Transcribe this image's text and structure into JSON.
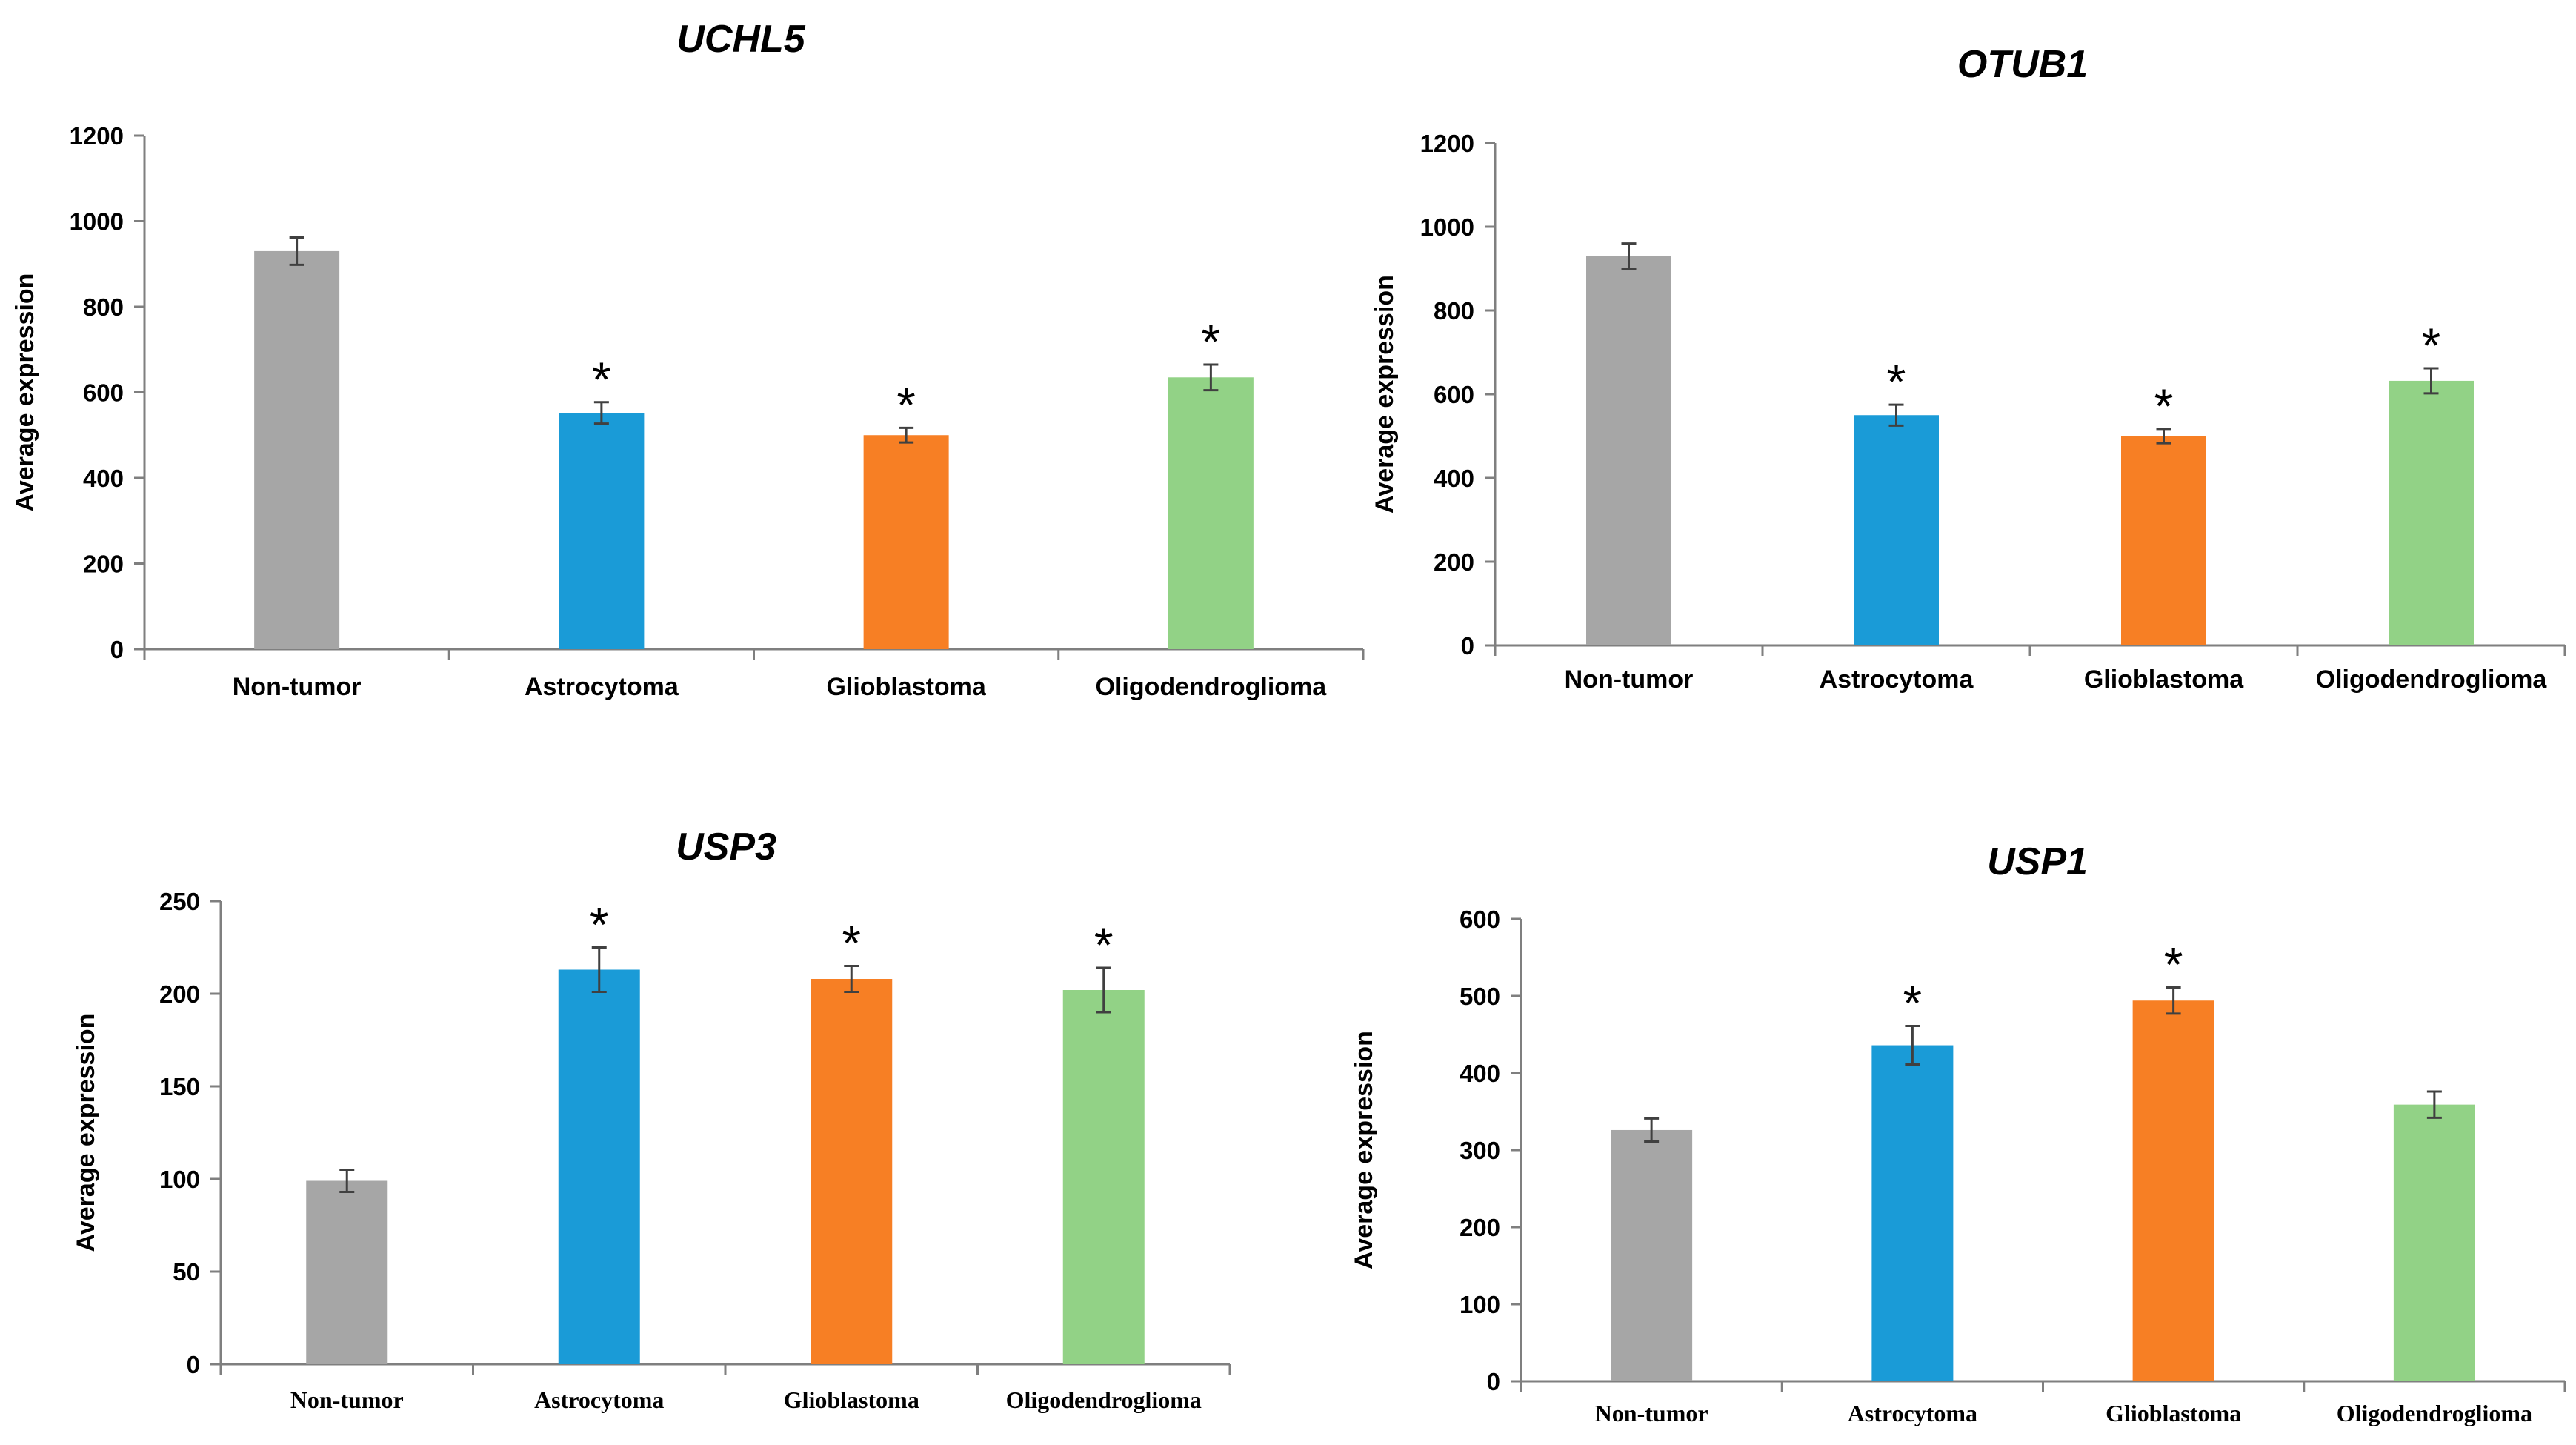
{
  "colors": {
    "Non-tumor": "#a6a6a6",
    "Astrocytoma": "#1a9bd7",
    "Glioblastoma": "#f77f24",
    "Oligodendroglioma": "#92d286"
  },
  "chart_data": [
    {
      "type": "bar",
      "title": "UCHL5",
      "ylabel": "Average expression",
      "xlabel": "",
      "categories": [
        "Non-tumor",
        "Astrocytoma",
        "Glioblastoma",
        "Oligodendroglioma"
      ],
      "values": [
        930,
        552,
        500,
        635
      ],
      "errors": [
        32,
        25,
        17,
        30
      ],
      "significance": [
        "",
        "*",
        "*",
        "*"
      ],
      "ylim": [
        0,
        1200
      ],
      "yticks": [
        0,
        200,
        400,
        600,
        800,
        1000,
        1200
      ],
      "grid": false
    },
    {
      "type": "bar",
      "title": "OTUB1",
      "ylabel": "Average expression",
      "xlabel": "",
      "categories": [
        "Non-tumor",
        "Astrocytoma",
        "Glioblastoma",
        "Oligodendroglioma"
      ],
      "values": [
        930,
        550,
        500,
        632
      ],
      "errors": [
        30,
        25,
        17,
        30
      ],
      "significance": [
        "",
        "*",
        "*",
        "*"
      ],
      "ylim": [
        0,
        1200
      ],
      "yticks": [
        0,
        200,
        400,
        600,
        800,
        1000,
        1200
      ],
      "grid": false
    },
    {
      "type": "bar",
      "title": "USP3",
      "ylabel": "Average expression",
      "xlabel": "",
      "categories": [
        "Non-tumor",
        "Astrocytoma",
        "Glioblastoma",
        "Oligodendroglioma"
      ],
      "values": [
        99,
        213,
        208,
        202
      ],
      "errors": [
        6,
        12,
        7,
        12
      ],
      "significance": [
        "",
        "*",
        "*",
        "*"
      ],
      "ylim": [
        0,
        250
      ],
      "yticks": [
        0,
        50,
        100,
        150,
        200,
        250
      ],
      "grid": false
    },
    {
      "type": "bar",
      "title": "USP1",
      "ylabel": "Average expression",
      "xlabel": "",
      "categories": [
        "Non-tumor",
        "Astrocytoma",
        "Glioblastoma",
        "Oligodendroglioma"
      ],
      "values": [
        326,
        436,
        494,
        359
      ],
      "errors": [
        15,
        25,
        17,
        17
      ],
      "significance": [
        "",
        "*",
        "*",
        ""
      ],
      "ylim": [
        0,
        600
      ],
      "yticks": [
        0,
        100,
        200,
        300,
        400,
        500,
        600
      ],
      "grid": false
    }
  ]
}
